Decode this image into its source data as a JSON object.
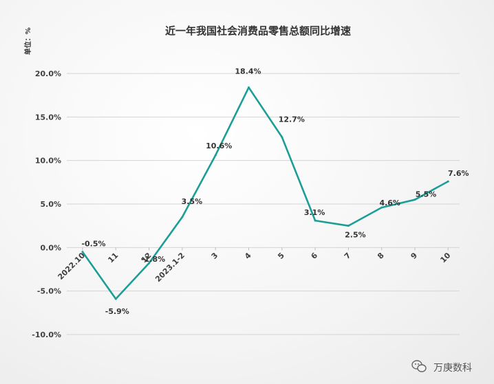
{
  "chart_data": {
    "type": "line",
    "title": "近一年我国社会消费品零售总额同比增速",
    "ylabel": "单位：%",
    "categories": [
      "2022.10",
      "11",
      "12",
      "2023.1-2",
      "3",
      "4",
      "5",
      "6",
      "7",
      "8",
      "9",
      "10"
    ],
    "series": [
      {
        "values": [
          -0.5,
          -5.9,
          -1.8,
          3.5,
          10.6,
          18.4,
          12.7,
          3.1,
          2.5,
          4.6,
          5.5,
          7.6
        ]
      }
    ],
    "data_labels": [
      "-0.5%",
      "-5.9%",
      "-1.8%",
      "3.5%",
      "10.6%",
      "18.4%",
      "12.7%",
      "3.1%",
      "2.5%",
      "4.6%",
      "5.5%",
      "7.6%"
    ],
    "ylim": [
      -10,
      20
    ],
    "yticks": [
      20,
      15,
      10,
      5,
      0,
      -5,
      -10
    ],
    "ytick_labels": [
      "20.0%",
      "15.0%",
      "10.0%",
      "5.0%",
      "0.0%",
      "-5.0%",
      "-10.0%"
    ],
    "grid": true,
    "line_color": "#1a9e96",
    "grid_color": "#d4d4d4"
  },
  "watermark": {
    "text": "万庚数科",
    "icon": "wechat-icon"
  }
}
